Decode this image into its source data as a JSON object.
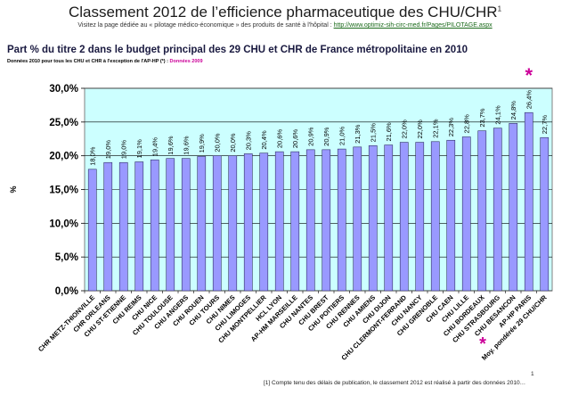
{
  "header": {
    "title": "Classement 2012 de l’efficience pharmaceutique des CHU/CHR",
    "title_sup": "1",
    "subline_text": "Visitez la page dédiée au « pilotage médico-économique » des produits de santé à l'hôpital : ",
    "subline_link": "http://www.optimiz-sih-circ-med.fr/Pages/PILOTAGE.aspx"
  },
  "chart_data": {
    "type": "bar",
    "title": "Part % du titre 2 dans le budget principal des 29 CHU et CHR de France métropolitaine en 2010",
    "note_text": "Données 2010 pour tous les CHU et CHR à l'exception de l'AP-HP (*) : ",
    "note_highlight": "Données 2009",
    "ylabel": "%",
    "ylim": [
      0,
      30
    ],
    "yticks": [
      "0,0%",
      "5,0%",
      "10,0%",
      "15,0%",
      "20,0%",
      "25,0%",
      "30,0%"
    ],
    "categories": [
      "CHR METZ-THIONVILLE",
      "CHR ORLEANS",
      "CHU ST-ETIENNE",
      "CHU REIMS",
      "CHU NICE",
      "CHU TOULOUSE",
      "CHU ANGERS",
      "CHU ROUEN",
      "CHU TOURS",
      "CHU NIMES",
      "CHU LIMOGES",
      "CHU MONTPELLIER",
      "HCL LYON",
      "AP-HM MARSEILLE",
      "CHU NANTES",
      "CHU BREST",
      "CHU POITIERS",
      "CHU RENNES",
      "CHU AMIENS",
      "CHU DIJON",
      "CHU CLERMONT-FERRAND",
      "CHU NANCY",
      "CHU GRENOBLE",
      "CHU CAEN",
      "CHU LILLE",
      "CHU BORDEAUX",
      "CHU STRASBOURG",
      "CHU BESANCON",
      "AP-HP PARIS",
      "Moy. pondérée 29 CHU/CHR"
    ],
    "values": [
      18.0,
      19.0,
      19.0,
      19.1,
      19.4,
      19.6,
      19.6,
      19.9,
      20.0,
      20.0,
      20.3,
      20.4,
      20.6,
      20.6,
      20.9,
      20.9,
      21.0,
      21.3,
      21.5,
      21.6,
      22.0,
      22.0,
      22.1,
      22.3,
      22.8,
      23.7,
      24.1,
      24.8,
      26.4,
      22.7
    ],
    "value_labels": [
      "18,0%",
      "19,0%",
      "19,0%",
      "19,1%",
      "19,4%",
      "19,6%",
      "19,6%",
      "19,9%",
      "20,0%",
      "20,0%",
      "20,3%",
      "20,4%",
      "20,6%",
      "20,6%",
      "20,9%",
      "20,9%",
      "21,0%",
      "21,3%",
      "21,5%",
      "21,6%",
      "22,0%",
      "22,0%",
      "22,1%",
      "22,3%",
      "22,8%",
      "23,7%",
      "24,1%",
      "24,8%",
      "26,4%",
      "22,7%"
    ],
    "grid": true,
    "legend": "none",
    "colors": {
      "plot_bg": "#ccffff",
      "bar": "#9999ff",
      "bar_stroke": "#333366",
      "star": "#cc0099"
    },
    "star_marker": "*",
    "star_category_index": 28
  },
  "footer": {
    "footnote": "[1] Compte tenu des délais de publication, le classement 2012 est réalisé à partir des données 2010…",
    "page_number": "1"
  }
}
